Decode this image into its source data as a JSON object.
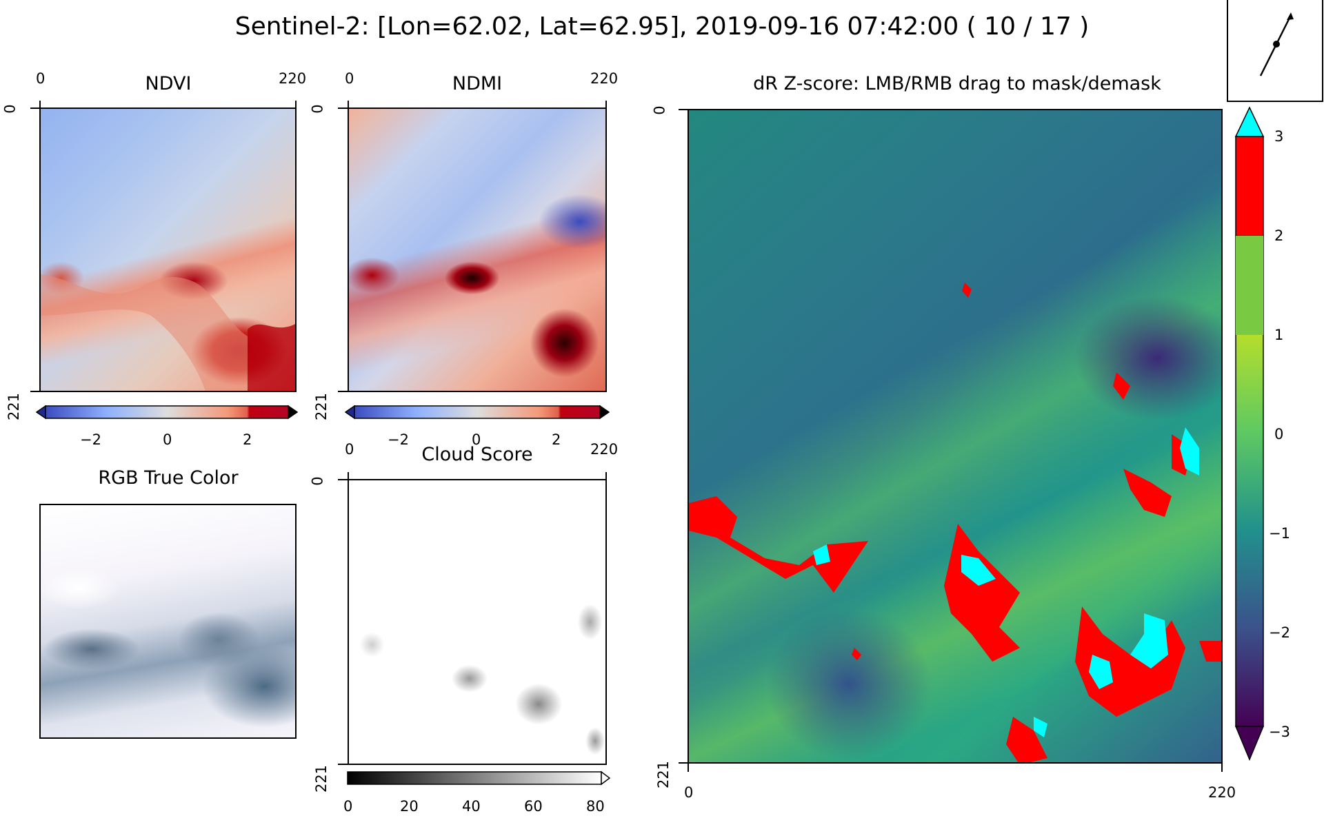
{
  "figure": {
    "suptitle": "Sentinel-2: [Lon=62.02, Lat=62.95], 2019-09-16 07:42:00 ( 10 / 17 )"
  },
  "panels": {
    "ndvi": {
      "title": "NDVI",
      "x_ticks": [
        "0",
        "220"
      ],
      "y_ticks": [
        "0",
        "221"
      ],
      "colorbar": {
        "cmap": "coolwarm",
        "range": [
          -3,
          3
        ],
        "ticks": [
          "−2",
          "0",
          "2"
        ],
        "over_color": "#000000",
        "under_color": "#1d2a8a"
      }
    },
    "ndmi": {
      "title": "NDMI",
      "x_ticks": [
        "0",
        "220"
      ],
      "y_ticks": [
        "0",
        "221"
      ],
      "colorbar": {
        "cmap": "coolwarm",
        "range": [
          -3,
          3
        ],
        "ticks": [
          "−2",
          "0",
          "2"
        ],
        "over_color": "#000000",
        "under_color": "#1d2a8a"
      }
    },
    "rgb": {
      "title": "RGB True Color"
    },
    "cloud": {
      "title": "Cloud Score",
      "x_ticks": [
        "0",
        "220"
      ],
      "y_ticks": [
        "0",
        "221"
      ],
      "colorbar": {
        "cmap": "gray",
        "range": [
          0,
          80
        ],
        "ticks": [
          "0",
          "20",
          "40",
          "60",
          "80"
        ]
      }
    },
    "zscore": {
      "title": "dR Z-score: LMB/RMB drag to mask/demask",
      "x_ticks": [
        "0",
        "220"
      ],
      "y_ticks": [
        "0",
        "221"
      ],
      "colorbar": {
        "cmap": "viridis",
        "range": [
          -3,
          3
        ],
        "ticks": [
          "3",
          "2",
          "1",
          "0",
          "−1",
          "−2",
          "−3"
        ],
        "high_color": "#ff0000",
        "over_color": "#00ffff",
        "under_color": "#440154"
      }
    }
  },
  "direction_widget": {
    "icon": "arrow-icon"
  }
}
